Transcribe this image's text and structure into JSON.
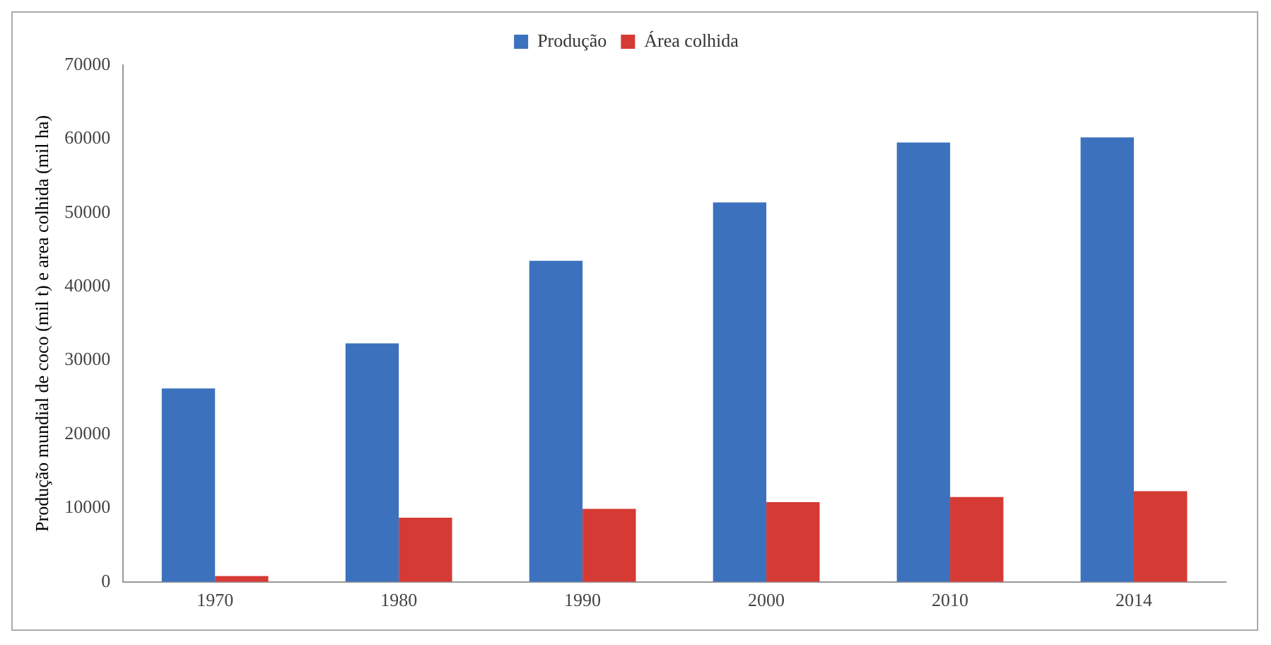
{
  "chart_data": {
    "type": "bar",
    "ylabel": "Produção mundial de coco (mil t) e area colhida (mil ha)",
    "categories": [
      "1970",
      "1980",
      "1990",
      "2000",
      "2010",
      "2014"
    ],
    "series": [
      {
        "name": "Produção",
        "color": "#3c72bd",
        "values": [
          26200,
          32300,
          43500,
          51400,
          59500,
          60200
        ]
      },
      {
        "name": "Área colhida",
        "color": "#d63a35",
        "values": [
          800,
          8700,
          9900,
          10800,
          11500,
          12300
        ]
      }
    ],
    "ylim": [
      0,
      70000
    ],
    "yticks": [
      0,
      10000,
      20000,
      30000,
      40000,
      50000,
      60000,
      70000
    ],
    "legend": "top"
  }
}
